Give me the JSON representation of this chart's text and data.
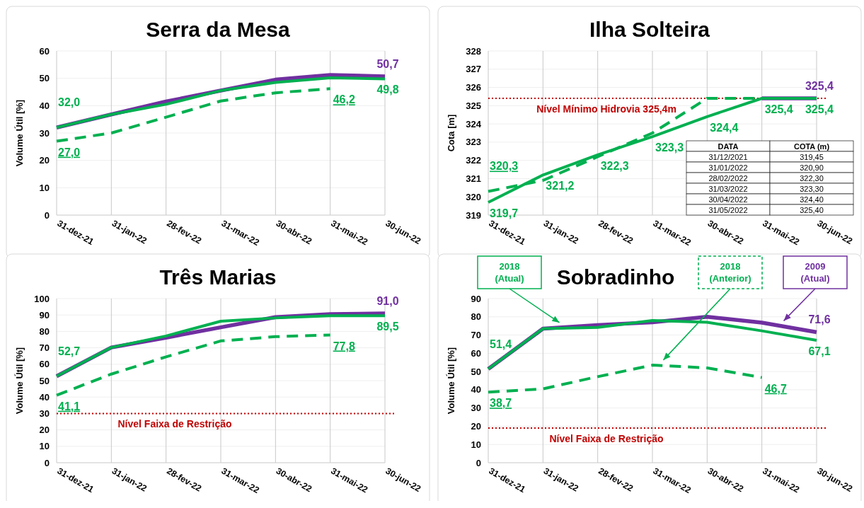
{
  "chart_data": [
    {
      "type": "line",
      "title": "Serra da Mesa",
      "ylabel": "Volume Útil [%]",
      "categories": [
        "31-dez-21",
        "31-jan-22",
        "28-fev-22",
        "31-mar-22",
        "30-abr-22",
        "31-mai-22",
        "30-jun-22"
      ],
      "ylim": [
        0,
        60
      ],
      "yticks": [
        0,
        10,
        20,
        30,
        40,
        50,
        60
      ],
      "grid": true,
      "marker": "none",
      "series": [
        {
          "color": "#7030a0",
          "line_style": "solid",
          "values": [
            32.0,
            36.8,
            41.5,
            45.5,
            49.5,
            51.2,
            50.7
          ],
          "value_labels": [
            null,
            null,
            null,
            null,
            null,
            null,
            "50,7"
          ]
        },
        {
          "color": "#00b050",
          "line_style": "solid",
          "values": [
            32.0,
            36.8,
            40.5,
            45.5,
            48.5,
            50.2,
            49.8
          ],
          "value_labels": [
            "32,0",
            null,
            null,
            null,
            null,
            null,
            "49,8"
          ]
        },
        {
          "color": "#00b050",
          "line_style": "dashed",
          "values": [
            27.0,
            30.0,
            35.8,
            41.7,
            44.7,
            46.2,
            null
          ],
          "value_labels": [
            "27,0",
            null,
            null,
            null,
            null,
            "46,2",
            null
          ]
        }
      ]
    },
    {
      "type": "line",
      "title": "Ilha Solteira",
      "ylabel": "Cota [m]",
      "categories": [
        "31-dez-21",
        "31-jan-22",
        "28-fev-22",
        "31-mar-22",
        "30-abr-22",
        "31-mai-22",
        "30-jun-22"
      ],
      "ylim": [
        319,
        328
      ],
      "yticks": [
        319,
        320,
        321,
        322,
        323,
        324,
        325,
        326,
        327,
        328
      ],
      "grid": true,
      "marker": "none",
      "series": [
        {
          "color": "#7030a0",
          "line_style": "solid",
          "values": [
            null,
            null,
            null,
            null,
            null,
            325.4,
            325.4
          ],
          "value_labels": [
            null,
            null,
            null,
            null,
            null,
            null,
            "325,4"
          ]
        },
        {
          "color": "#00b050",
          "line_style": "solid",
          "values": [
            319.7,
            321.2,
            322.3,
            323.3,
            324.4,
            325.4,
            325.4
          ],
          "value_labels": [
            "319,7",
            "321,2",
            "322,3",
            "323,3",
            "324,4",
            "325,4",
            "325,4"
          ]
        },
        {
          "color": "#00b050",
          "line_style": "dashed",
          "values": [
            320.3,
            320.9,
            322.2,
            323.5,
            325.4,
            325.4,
            325.4
          ],
          "value_labels": [
            "320,3",
            null,
            null,
            null,
            null,
            null,
            null
          ]
        }
      ],
      "ref_lines": [
        {
          "axis": "y",
          "value": 325.4,
          "label": "Nível Mínimo Hidrovia 325,4m",
          "color": "#c00000",
          "line_style": "dotted"
        }
      ],
      "annotations": [
        "DATA",
        "COTA (m)",
        "31/12/2021",
        "319,45",
        "31/01/2022",
        "320,90",
        "28/02/2022",
        "322,30",
        "31/03/2022",
        "323,30",
        "30/04/2022",
        "324,40",
        "31/05/2022",
        "325,40"
      ]
    },
    {
      "type": "line",
      "title": "Três Marias",
      "ylabel": "Volume Útil [%]",
      "categories": [
        "31-dez-21",
        "31-jan-22",
        "28-fev-22",
        "31-mar-22",
        "30-abr-22",
        "31-mai-22",
        "30-jun-22"
      ],
      "ylim": [
        0,
        100
      ],
      "yticks": [
        0,
        10,
        20,
        30,
        40,
        50,
        60,
        70,
        80,
        90,
        100
      ],
      "grid": true,
      "marker": "none",
      "series": [
        {
          "color": "#7030a0",
          "line_style": "solid",
          "values": [
            52.7,
            70.2,
            76.2,
            82.5,
            88.7,
            90.5,
            91.0
          ],
          "value_labels": [
            null,
            null,
            null,
            null,
            null,
            null,
            "91,0"
          ]
        },
        {
          "color": "#00b050",
          "line_style": "solid",
          "values": [
            52.7,
            70.2,
            77.2,
            86.2,
            88.2,
            89.5,
            89.5
          ],
          "value_labels": [
            "52,7",
            null,
            null,
            null,
            null,
            null,
            "89,5"
          ]
        },
        {
          "color": "#00b050",
          "line_style": "dashed",
          "values": [
            41.1,
            54.0,
            64.5,
            74.2,
            76.8,
            77.8,
            null
          ],
          "value_labels": [
            "41,1",
            null,
            null,
            null,
            null,
            "77,8",
            null
          ]
        }
      ],
      "ref_lines": [
        {
          "axis": "y",
          "value": 30,
          "label": "Nível Faixa de Restrição",
          "color": "#c00000",
          "line_style": "dotted"
        }
      ]
    },
    {
      "type": "line",
      "title": "Sobradinho",
      "ylabel": "Volume Útil [%]",
      "categories": [
        "31-dez-21",
        "31-jan-22",
        "28-fev-22",
        "31-mar-22",
        "30-abr-22",
        "31-mai-22",
        "30-jun-22"
      ],
      "ylim": [
        0,
        90
      ],
      "yticks": [
        0,
        10,
        20,
        30,
        40,
        50,
        60,
        70,
        80,
        90
      ],
      "grid": true,
      "marker": "none",
      "legend": "top",
      "series": [
        {
          "name": "2009 (Atual)",
          "color": "#7030a0",
          "line_style": "solid",
          "values": [
            51.4,
            73.5,
            75.5,
            77.0,
            80.0,
            76.8,
            71.6
          ],
          "value_labels": [
            null,
            null,
            null,
            null,
            null,
            null,
            "71,6"
          ]
        },
        {
          "name": "2018 (Atual)",
          "color": "#00b050",
          "line_style": "solid",
          "values": [
            51.4,
            73.5,
            74.2,
            78.0,
            77.0,
            72.3,
            67.1
          ],
          "value_labels": [
            "51,4",
            null,
            null,
            null,
            null,
            null,
            "67,1"
          ]
        },
        {
          "name": "2018 (Anterior)",
          "color": "#00b050",
          "line_style": "dashed",
          "values": [
            38.7,
            40.5,
            47.2,
            53.5,
            52.0,
            46.7,
            null
          ],
          "value_labels": [
            "38,7",
            null,
            null,
            null,
            null,
            "46,7",
            null
          ]
        }
      ],
      "ref_lines": [
        {
          "axis": "y",
          "value": 19,
          "label": "Nível Faixa de Restrição",
          "color": "#c00000",
          "line_style": "dotted"
        }
      ]
    }
  ]
}
